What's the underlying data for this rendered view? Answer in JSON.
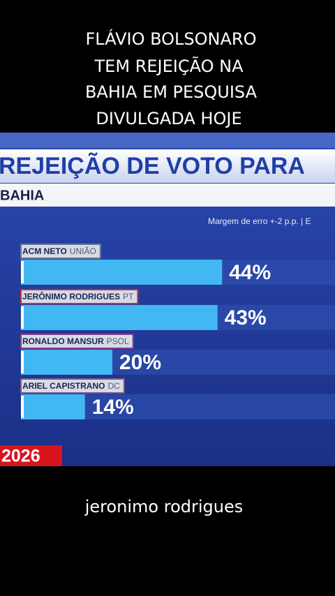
{
  "caption": [
    "FLÁVIO BOLSONARO",
    "TEM REJEIÇÃO NA",
    "BAHIA  EM PESQUISA",
    "DIVULGADA HOJE"
  ],
  "chart_data": {
    "type": "bar",
    "title": "REJEIÇÃO DE VOTO PARA",
    "subtitle": "BAHIA",
    "note": "Margem de erro +-2 p.p. | E",
    "categories": [
      "ACM NETO",
      "JERÔNIMO RODRIGUES",
      "RONALDO MANSUR",
      "ARIEL CAPISTRANO"
    ],
    "parties": [
      "UNIÃO",
      "PT",
      "PSOL",
      "DC"
    ],
    "values": [
      44,
      43,
      20,
      14
    ],
    "value_labels": [
      "44%",
      "43%",
      "20%",
      "14%"
    ],
    "color": "#41b8f2",
    "year": "2026"
  },
  "footer_caption": "jeronimo rodrigues"
}
